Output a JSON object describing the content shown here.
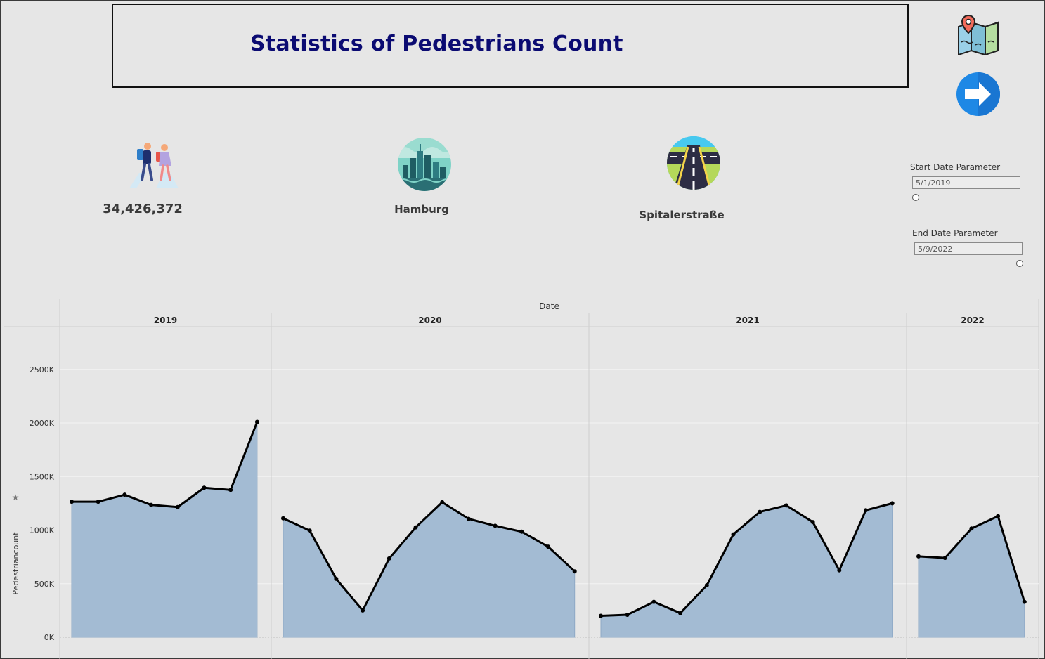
{
  "header": {
    "title": "Statistics of Pedestrians Count"
  },
  "kpis": {
    "total_count": "34,426,372",
    "city": "Hamburg",
    "street": "Spitalerstraße"
  },
  "icons": {
    "map": "map-pin-icon",
    "next": "arrow-right-icon",
    "pedestrians": "pedestrians-icon",
    "city": "city-skyline-icon",
    "street": "road-icon"
  },
  "parameters": {
    "start": {
      "label": "Start Date Parameter",
      "value": "5/1/2019"
    },
    "end": {
      "label": "End Date Parameter",
      "value": "5/9/2022"
    }
  },
  "colors": {
    "title": "#0b0b72",
    "area_fill": "#a3bbd3",
    "line": "#000000",
    "arrow": "#1e88e5"
  },
  "chart_data": {
    "type": "area",
    "title": "",
    "xlabel": "Date",
    "ylabel": "Pedestriancount",
    "ylim": [
      0,
      2900000
    ],
    "yticks": [
      0,
      500000,
      1000000,
      1500000,
      2000000,
      2500000
    ],
    "ytick_labels": [
      "0K",
      "500K",
      "1000K",
      "1500K",
      "2000K",
      "2500K"
    ],
    "grid": true,
    "panels": [
      {
        "year": "2019",
        "values": [
          1265000,
          1265000,
          1330000,
          1235000,
          1215000,
          1395000,
          1375000,
          2010000
        ]
      },
      {
        "year": "2020",
        "values": [
          1110000,
          995000,
          545000,
          250000,
          735000,
          1025000,
          1260000,
          1105000,
          1040000,
          985000,
          845000,
          615000
        ]
      },
      {
        "year": "2021",
        "values": [
          200000,
          210000,
          330000,
          225000,
          485000,
          960000,
          1170000,
          1230000,
          1075000,
          625000,
          1185000,
          1250000
        ]
      },
      {
        "year": "2022",
        "values": [
          755000,
          740000,
          1015000,
          1130000,
          330000
        ]
      }
    ]
  }
}
